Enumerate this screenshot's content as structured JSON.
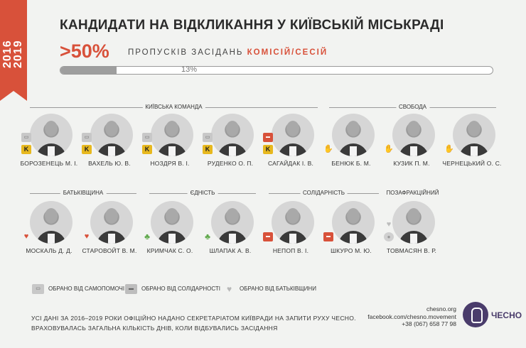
{
  "ribbon": {
    "year_start": "2016",
    "year_end": "2019"
  },
  "title": "КАНДИДАТИ НА ВІДКЛИКАННЯ У КИЇВСЬКІЙ МІСЬКРАДІ",
  "stat": {
    "big": ">50%",
    "subtitle_prefix": "ПРОПУСКІВ ЗАСІДАНЬ",
    "subtitle_accent": "КОМІСІЙ/СЕСІЙ"
  },
  "progress": {
    "label": "13%",
    "fraction": 0.13
  },
  "groups": {
    "kyiv_team": "КИЇВСЬКА КОМАНДА",
    "svoboda": "СВОБОДА",
    "batkivshchyna": "БАТЬКІВЩИНА",
    "yednist": "ЄДНІСТЬ",
    "solidarnist": "СОЛІДАРНІСТЬ",
    "pozafraktsiinyi": "ПОЗАФРАКЦІЙНИЙ"
  },
  "people": [
    {
      "name": "БОРОЗЕНЕЦЬ М. І.",
      "badges": [
        "samopomich-icon",
        "k-icon"
      ]
    },
    {
      "name": "ВАХЕЛЬ Ю. В.",
      "badges": [
        "samopomich-icon",
        "k-icon"
      ]
    },
    {
      "name": "НОЗДРЯ В. І.",
      "badges": [
        "samopomich-icon",
        "k-icon"
      ]
    },
    {
      "name": "РУДЕНКО О. П.",
      "badges": [
        "samopomich-icon",
        "k-icon"
      ]
    },
    {
      "name": "САГАЙДАК І. В.",
      "badges": [
        "solidarnist-icon",
        "k-icon"
      ]
    },
    {
      "name": "БЕНЮК Б. М.",
      "badges": [
        "svoboda-hand-icon"
      ]
    },
    {
      "name": "КУЗИК П. М.",
      "badges": [
        "svoboda-hand-icon"
      ]
    },
    {
      "name": "ЧЕРНЕЦЬКИЙ О. С.",
      "badges": [
        "svoboda-hand-icon"
      ]
    },
    {
      "name": "МОСКАЛЬ Д. Д.",
      "badges": [
        "heart-icon"
      ]
    },
    {
      "name": "СТАРОВОЙТ В. М.",
      "badges": [
        "heart-icon"
      ]
    },
    {
      "name": "КРИМЧАК С. О.",
      "badges": [
        "clover-icon"
      ]
    },
    {
      "name": "ШЛАПАК А. В.",
      "badges": [
        "clover-icon"
      ]
    },
    {
      "name": "НЕПОП В. І.",
      "badges": [
        "solidarnist-icon"
      ]
    },
    {
      "name": "ШКУРО М. Ю.",
      "badges": [
        "solidarnist-icon"
      ]
    },
    {
      "name": "ТОВМАСЯН В. Р.",
      "badges": [
        "heart-icon",
        "person-icon"
      ]
    }
  ],
  "legend": {
    "samopomich": "ОБРАНО ВІД САМОПОМОЧІ",
    "solidarnist": "ОБРАНО ВІД СОЛІДАРНОСТІ",
    "batkivshchyna": "ОБРАНО ВІД БАТЬКІВЩИНИ"
  },
  "footnote": {
    "line1": "УСІ ДАНІ ЗА 2016–2019 РОКИ ОФІЦІЙНО НАДАНО СЕКРЕТАРІАТОМ КИЇВРАДИ НА ЗАПИТИ РУХУ ЧЕСНО.",
    "line2": "ВРАХОВУВАЛАСЬ ЗАГАЛЬНА КІЛЬКІСТЬ ДНІВ, КОЛИ ВІДБУВАЛИСЬ ЗАСІДАННЯ"
  },
  "contacts": {
    "site": "chesno.org",
    "facebook": "facebook.com/chesno.movement",
    "phone": "+38 (067) 658 77 98"
  },
  "logo_text": "ЧЕСНО",
  "colors": {
    "accent": "#d8513a",
    "brand": "#4a3c6b",
    "samopomich_k": "#e7b81e",
    "yednist": "#5ea84a"
  }
}
